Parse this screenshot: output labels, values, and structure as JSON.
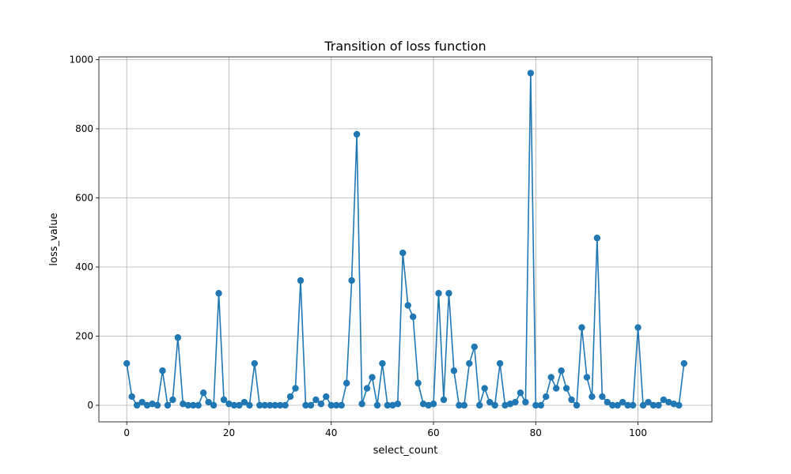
{
  "chart_data": {
    "type": "line",
    "title": "Transition of loss function",
    "xlabel": "select_count",
    "ylabel": "loss_value",
    "xlim": [
      -5.45,
      114.45
    ],
    "ylim": [
      -48,
      1008
    ],
    "xticks": [
      0,
      20,
      40,
      60,
      80,
      100
    ],
    "yticks": [
      0,
      200,
      400,
      600,
      800,
      1000
    ],
    "grid": true,
    "legend": "none",
    "series": [
      {
        "color": "#1f77b4",
        "marker": "circle",
        "x": [
          0,
          1,
          2,
          3,
          4,
          5,
          6,
          7,
          8,
          9,
          10,
          11,
          12,
          13,
          14,
          15,
          16,
          17,
          18,
          19,
          20,
          21,
          22,
          23,
          24,
          25,
          26,
          27,
          28,
          29,
          30,
          31,
          32,
          33,
          34,
          35,
          36,
          37,
          38,
          39,
          40,
          41,
          42,
          43,
          44,
          45,
          46,
          47,
          48,
          49,
          50,
          51,
          52,
          53,
          54,
          55,
          56,
          57,
          58,
          59,
          60,
          61,
          62,
          63,
          64,
          65,
          66,
          67,
          68,
          69,
          70,
          71,
          72,
          73,
          74,
          75,
          76,
          77,
          78,
          79,
          80,
          81,
          82,
          83,
          84,
          85,
          86,
          87,
          88,
          89,
          90,
          91,
          92,
          93,
          94,
          95,
          96,
          97,
          98,
          99,
          100,
          101,
          102,
          103,
          104,
          105,
          106,
          107,
          108,
          109
        ],
        "values": [
          121,
          25,
          0,
          9,
          0,
          4,
          0,
          100,
          0,
          16,
          196,
          4,
          0,
          0,
          0,
          36,
          9,
          0,
          324,
          16,
          4,
          0,
          0,
          9,
          0,
          121,
          0,
          0,
          0,
          0,
          0,
          0,
          25,
          49,
          361,
          0,
          0,
          16,
          4,
          25,
          0,
          0,
          0,
          64,
          361,
          784,
          4,
          49,
          81,
          0,
          121,
          0,
          0,
          4,
          441,
          289,
          256,
          64,
          4,
          0,
          4,
          324,
          16,
          324,
          100,
          0,
          0,
          121,
          169,
          0,
          49,
          9,
          0,
          121,
          0,
          4,
          9,
          36,
          9,
          961,
          0,
          0,
          25,
          81,
          49,
          100,
          49,
          16,
          0,
          225,
          81,
          25,
          484,
          25,
          9,
          0,
          0,
          9,
          0,
          0,
          225,
          0,
          9,
          0,
          0,
          16,
          9,
          4,
          0,
          121
        ]
      }
    ]
  }
}
